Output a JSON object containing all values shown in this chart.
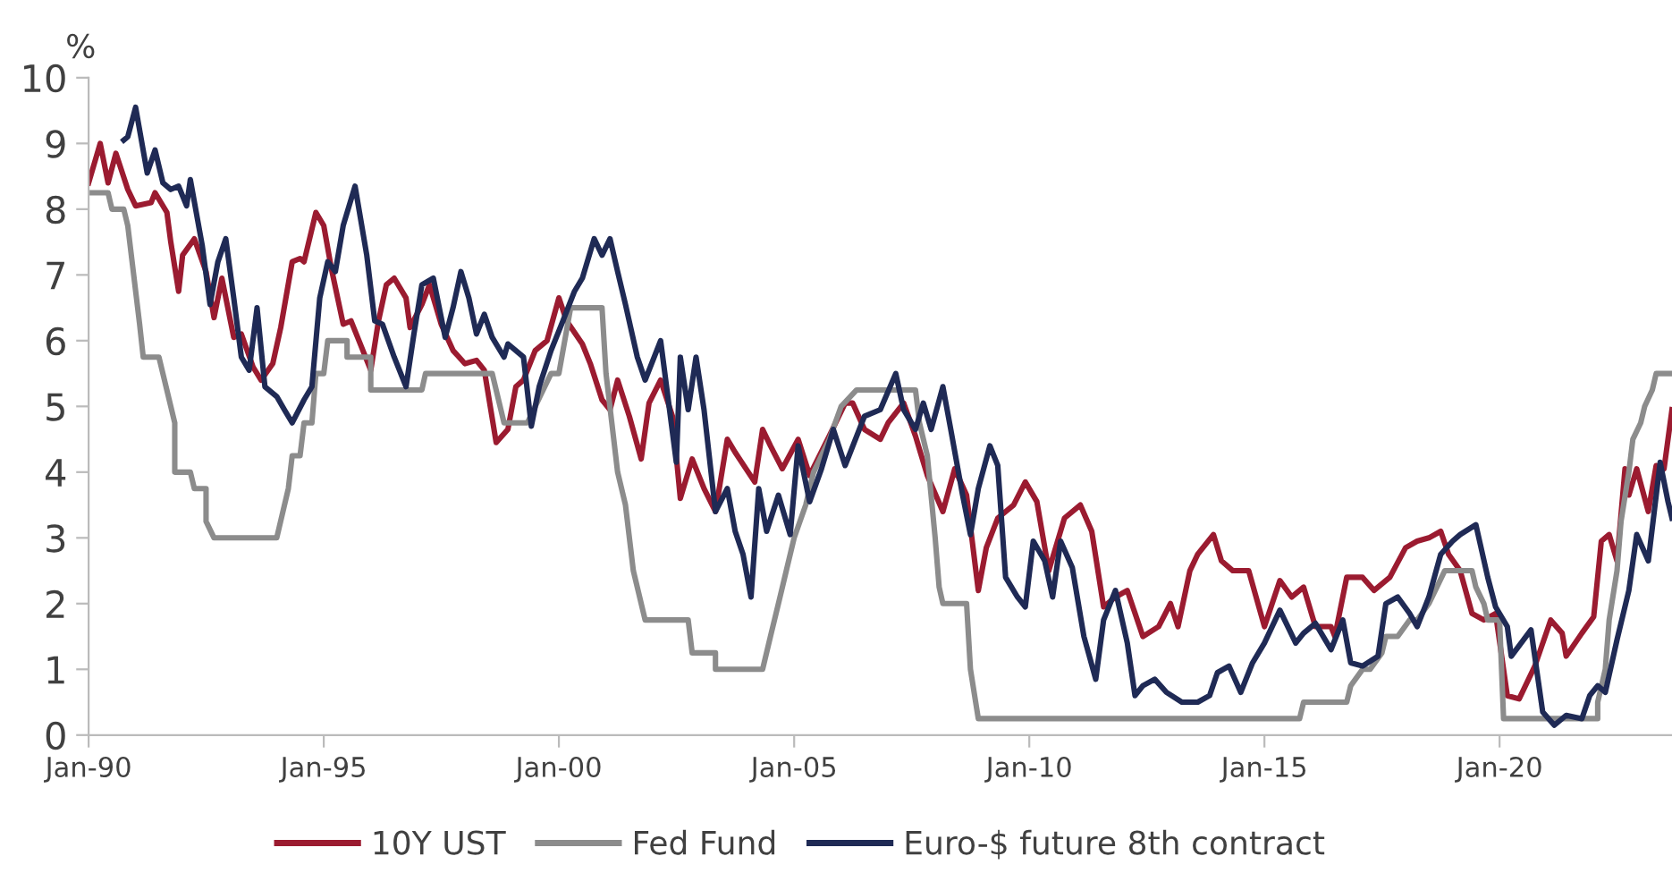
{
  "chart_data": {
    "type": "line",
    "ylabel": "%",
    "xlim": [
      "1990-01",
      "2023-09"
    ],
    "ylim": [
      0,
      10
    ],
    "yticks": [
      0,
      1,
      2,
      3,
      4,
      5,
      6,
      7,
      8,
      9,
      10
    ],
    "xticks": [
      {
        "value": "1990-01",
        "label": "Jan-90"
      },
      {
        "value": "1995-01",
        "label": "Jan-95"
      },
      {
        "value": "2000-01",
        "label": "Jan-00"
      },
      {
        "value": "2005-01",
        "label": "Jan-05"
      },
      {
        "value": "2010-01",
        "label": "Jan-10"
      },
      {
        "value": "2015-01",
        "label": "Jan-15"
      },
      {
        "value": "2020-01",
        "label": "Jan-20"
      }
    ],
    "grid": false,
    "legend": "bottom",
    "marker": "none",
    "line_style": "solid",
    "series": [
      {
        "name": "10Y UST",
        "color": "#9b1b30",
        "x": [
          "1990-01",
          "1990-04",
          "1990-06",
          "1990-08",
          "1990-11",
          "1991-01",
          "1991-05",
          "1991-06",
          "1991-09",
          "1991-10",
          "1991-12",
          "1992-01",
          "1992-04",
          "1992-07",
          "1992-09",
          "1992-11",
          "1993-02",
          "1993-04",
          "1993-07",
          "1993-09",
          "1993-12",
          "1994-02",
          "1994-05",
          "1994-07",
          "1994-08",
          "1994-11",
          "1995-01",
          "1995-03",
          "1995-06",
          "1995-08",
          "1995-11",
          "1996-01",
          "1996-03",
          "1996-05",
          "1996-07",
          "1996-10",
          "1996-11",
          "1997-02",
          "1997-04",
          "1997-07",
          "1997-10",
          "1998-01",
          "1998-04",
          "1998-06",
          "1998-09",
          "1998-12",
          "1999-02",
          "1999-04",
          "1999-07",
          "1999-10",
          "2000-01",
          "2000-03",
          "2000-07",
          "2000-09",
          "2000-12",
          "2001-02",
          "2001-04",
          "2001-07",
          "2001-10",
          "2001-12",
          "2002-03",
          "2002-06",
          "2002-08",
          "2002-11",
          "2003-02",
          "2003-05",
          "2003-08",
          "2003-10",
          "2004-03",
          "2004-05",
          "2004-07",
          "2004-10",
          "2005-02",
          "2005-05",
          "2005-10",
          "2006-02",
          "2006-04",
          "2006-07",
          "2006-11",
          "2007-01",
          "2007-05",
          "2007-08",
          "2007-11",
          "2008-03",
          "2008-06",
          "2008-09",
          "2008-12",
          "2009-02",
          "2009-05",
          "2009-09",
          "2009-12",
          "2010-03",
          "2010-06",
          "2010-10",
          "2011-02",
          "2011-05",
          "2011-08",
          "2011-11",
          "2012-02",
          "2012-06",
          "2012-10",
          "2013-01",
          "2013-03",
          "2013-06",
          "2013-08",
          "2013-12",
          "2014-02",
          "2014-05",
          "2014-09",
          "2015-01",
          "2015-05",
          "2015-08",
          "2015-11",
          "2016-02",
          "2016-06",
          "2016-07",
          "2016-10",
          "2017-02",
          "2017-05",
          "2017-09",
          "2018-01",
          "2018-04",
          "2018-07",
          "2018-10",
          "2018-12",
          "2019-03",
          "2019-06",
          "2019-09",
          "2019-12",
          "2020-03",
          "2020-06",
          "2020-10",
          "2021-02",
          "2021-05",
          "2021-06",
          "2021-10",
          "2022-01",
          "2022-03",
          "2022-05",
          "2022-07",
          "2022-09",
          "2022-10",
          "2022-12",
          "2023-03",
          "2023-05",
          "2023-07",
          "2023-09"
        ],
        "values": [
          8.4,
          9.0,
          8.4,
          8.85,
          8.3,
          8.05,
          8.1,
          8.25,
          7.95,
          7.5,
          6.75,
          7.3,
          7.55,
          7.05,
          6.35,
          6.95,
          6.05,
          6.1,
          5.6,
          5.4,
          5.65,
          6.2,
          7.2,
          7.25,
          7.2,
          7.95,
          7.75,
          7.1,
          6.25,
          6.3,
          5.85,
          5.55,
          6.3,
          6.85,
          6.95,
          6.65,
          6.2,
          6.55,
          6.85,
          6.25,
          5.85,
          5.65,
          5.7,
          5.55,
          4.45,
          4.65,
          5.3,
          5.4,
          5.85,
          6.0,
          6.65,
          6.3,
          5.95,
          5.65,
          5.1,
          4.95,
          5.4,
          4.85,
          4.2,
          5.05,
          5.4,
          4.85,
          3.6,
          4.2,
          3.75,
          3.4,
          4.5,
          4.3,
          3.85,
          4.65,
          4.4,
          4.05,
          4.5,
          3.95,
          4.55,
          5.05,
          5.05,
          4.65,
          4.5,
          4.75,
          5.05,
          4.55,
          3.95,
          3.4,
          4.05,
          3.65,
          2.2,
          2.85,
          3.3,
          3.5,
          3.85,
          3.55,
          2.5,
          3.3,
          3.5,
          3.1,
          1.95,
          2.1,
          2.2,
          1.5,
          1.65,
          2.0,
          1.65,
          2.5,
          2.75,
          3.05,
          2.65,
          2.5,
          2.5,
          1.65,
          2.35,
          2.1,
          2.25,
          1.65,
          1.65,
          1.5,
          2.4,
          2.4,
          2.2,
          2.4,
          2.85,
          2.95,
          3.0,
          3.1,
          2.75,
          2.5,
          1.85,
          1.75,
          1.85,
          0.6,
          0.55,
          1.05,
          1.75,
          1.55,
          1.2,
          1.55,
          1.8,
          2.95,
          3.05,
          2.65,
          4.05,
          3.65,
          4.05,
          3.4,
          4.1,
          4.05,
          4.95
        ]
      },
      {
        "name": "Fed Fund",
        "color": "#8c8c8c",
        "x": [
          "1990-01",
          "1990-06",
          "1990-07",
          "1990-10",
          "1990-11",
          "1991-02",
          "1991-03",
          "1991-07",
          "1991-11",
          "1991-11",
          "1992-03",
          "1992-04",
          "1992-07",
          "1992-07",
          "1992-09",
          "1994-01",
          "1994-04",
          "1994-05",
          "1994-07",
          "1994-08",
          "1994-10",
          "1994-11",
          "1995-01",
          "1995-02",
          "1995-07",
          "1995-07",
          "1996-01",
          "1996-01",
          "1997-02",
          "1997-03",
          "1998-08",
          "1998-11",
          "1999-05",
          "1999-07",
          "1999-11",
          "2000-01",
          "2000-04",
          "2000-12",
          "2001-01",
          "2001-04",
          "2001-06",
          "2001-08",
          "2001-11",
          "2002-10",
          "2002-11",
          "2003-05",
          "2003-05",
          "2004-05",
          "2004-07",
          "2004-09",
          "2004-11",
          "2005-01",
          "2005-04",
          "2005-06",
          "2005-10",
          "2006-01",
          "2006-05",
          "2007-08",
          "2007-09",
          "2007-11",
          "2008-01",
          "2008-02",
          "2008-03",
          "2008-09",
          "2008-10",
          "2008-12",
          "2015-10",
          "2015-11",
          "2016-10",
          "2016-11",
          "2017-02",
          "2017-04",
          "2017-07",
          "2017-08",
          "2017-11",
          "2018-02",
          "2018-04",
          "2018-07",
          "2018-09",
          "2018-11",
          "2019-06",
          "2019-07",
          "2019-09",
          "2019-10",
          "2020-01",
          "2020-02",
          "2022-02",
          "2022-02",
          "2022-04",
          "2022-05",
          "2022-07",
          "2022-08",
          "2022-10",
          "2022-11",
          "2023-01",
          "2023-02",
          "2023-04",
          "2023-05",
          "2023-07",
          "2023-09"
        ],
        "values": [
          8.25,
          8.25,
          8.0,
          8.0,
          7.75,
          6.25,
          5.75,
          5.75,
          4.75,
          4.0,
          4.0,
          3.75,
          3.75,
          3.25,
          3.0,
          3.0,
          3.75,
          4.25,
          4.25,
          4.75,
          4.75,
          5.5,
          5.5,
          6.0,
          6.0,
          5.75,
          5.75,
          5.25,
          5.25,
          5.5,
          5.5,
          4.75,
          4.75,
          5.0,
          5.5,
          5.5,
          6.5,
          6.5,
          5.5,
          4.0,
          3.5,
          2.5,
          1.75,
          1.75,
          1.25,
          1.25,
          1.0,
          1.0,
          1.5,
          2.0,
          2.5,
          3.0,
          3.5,
          4.0,
          4.5,
          5.0,
          5.25,
          5.25,
          4.75,
          4.25,
          3.0,
          2.25,
          2.0,
          2.0,
          1.0,
          0.25,
          0.25,
          0.5,
          0.5,
          0.75,
          1.0,
          1.0,
          1.25,
          1.5,
          1.5,
          1.75,
          1.75,
          2.0,
          2.25,
          2.5,
          2.5,
          2.25,
          2.0,
          1.75,
          1.75,
          0.25,
          0.25,
          0.5,
          1.0,
          1.75,
          2.5,
          3.25,
          4.0,
          4.5,
          4.75,
          5.0,
          5.25,
          5.5,
          5.5,
          5.5
        ]
      },
      {
        "name": "Euro-$ future 8th contract",
        "color": "#1f2a55",
        "x": [
          "1990-10",
          "1990-11",
          "1991-01",
          "1991-04",
          "1991-06",
          "1991-08",
          "1991-10",
          "1991-12",
          "1992-02",
          "1992-03",
          "1992-06",
          "1992-08",
          "1992-10",
          "1992-12",
          "1993-02",
          "1993-04",
          "1993-06",
          "1993-08",
          "1993-10",
          "1994-01",
          "1994-03",
          "1994-05",
          "1994-08",
          "1994-10",
          "1994-12",
          "1995-02",
          "1995-04",
          "1995-06",
          "1995-09",
          "1995-12",
          "1996-02",
          "1996-04",
          "1996-07",
          "1996-10",
          "1996-12",
          "1997-02",
          "1997-05",
          "1997-08",
          "1997-10",
          "1997-12",
          "1998-02",
          "1998-04",
          "1998-06",
          "1998-08",
          "1998-11",
          "1998-12",
          "1999-04",
          "1999-06",
          "1999-08",
          "1999-11",
          "2000-02",
          "2000-05",
          "2000-07",
          "2000-10",
          "2000-12",
          "2001-02",
          "2001-04",
          "2001-06",
          "2001-09",
          "2001-11",
          "2002-03",
          "2002-07",
          "2002-08",
          "2002-10",
          "2002-12",
          "2003-02",
          "2003-05",
          "2003-08",
          "2003-10",
          "2003-12",
          "2004-02",
          "2004-04",
          "2004-06",
          "2004-09",
          "2004-12",
          "2005-02",
          "2005-05",
          "2005-08",
          "2005-11",
          "2006-02",
          "2006-07",
          "2006-11",
          "2007-03",
          "2007-05",
          "2007-08",
          "2007-10",
          "2007-12",
          "2008-03",
          "2008-05",
          "2008-08",
          "2008-10",
          "2008-12",
          "2009-03",
          "2009-05",
          "2009-07",
          "2009-10",
          "2009-12",
          "2010-02",
          "2010-05",
          "2010-07",
          "2010-09",
          "2010-12",
          "2011-03",
          "2011-06",
          "2011-08",
          "2011-11",
          "2012-02",
          "2012-04",
          "2012-06",
          "2012-09",
          "2012-12",
          "2013-04",
          "2013-08",
          "2013-11",
          "2014-01",
          "2014-04",
          "2014-07",
          "2014-10",
          "2015-01",
          "2015-05",
          "2015-09",
          "2015-11",
          "2016-02",
          "2016-06",
          "2016-09",
          "2016-11",
          "2017-02",
          "2017-06",
          "2017-08",
          "2017-11",
          "2018-02",
          "2018-04",
          "2018-07",
          "2018-10",
          "2019-01",
          "2019-03",
          "2019-07",
          "2019-10",
          "2019-12",
          "2020-03",
          "2020-04",
          "2020-09",
          "2020-12",
          "2021-03",
          "2021-06",
          "2021-10",
          "2021-12",
          "2022-02",
          "2022-04",
          "2022-07",
          "2022-10",
          "2022-12",
          "2023-03",
          "2023-06",
          "2023-08",
          "2023-09"
        ],
        "values": [
          9.05,
          9.1,
          9.55,
          8.55,
          8.9,
          8.4,
          8.3,
          8.35,
          8.05,
          8.45,
          7.45,
          6.55,
          7.2,
          7.55,
          6.65,
          5.75,
          5.55,
          6.5,
          5.3,
          5.15,
          4.95,
          4.75,
          5.1,
          5.3,
          6.65,
          7.2,
          7.05,
          7.75,
          8.35,
          7.3,
          6.3,
          6.25,
          5.75,
          5.3,
          6.1,
          6.85,
          6.95,
          6.05,
          6.5,
          7.05,
          6.65,
          6.1,
          6.4,
          6.05,
          5.75,
          5.95,
          5.75,
          4.7,
          5.3,
          5.85,
          6.3,
          6.75,
          6.95,
          7.55,
          7.3,
          7.55,
          7.05,
          6.55,
          5.75,
          5.4,
          6.0,
          4.15,
          5.75,
          4.95,
          5.75,
          4.95,
          3.4,
          3.75,
          3.1,
          2.75,
          2.1,
          3.75,
          3.1,
          3.65,
          3.05,
          4.4,
          3.55,
          4.05,
          4.65,
          4.1,
          4.85,
          4.95,
          5.5,
          4.95,
          4.65,
          5.05,
          4.65,
          5.3,
          4.65,
          3.65,
          3.05,
          3.75,
          4.4,
          4.1,
          2.4,
          2.1,
          1.95,
          2.95,
          2.65,
          2.1,
          2.95,
          2.55,
          1.5,
          0.85,
          1.75,
          2.2,
          1.4,
          0.6,
          0.75,
          0.85,
          0.65,
          0.5,
          0.5,
          0.6,
          0.95,
          1.05,
          0.65,
          1.1,
          1.4,
          1.9,
          1.4,
          1.55,
          1.7,
          1.3,
          1.75,
          1.1,
          1.05,
          1.2,
          2.0,
          2.1,
          1.85,
          1.65,
          2.1,
          2.75,
          2.95,
          3.05,
          3.2,
          2.4,
          1.95,
          1.65,
          1.2,
          1.6,
          0.35,
          0.15,
          0.3,
          0.25,
          0.6,
          0.75,
          0.65,
          1.45,
          2.2,
          3.05,
          2.65,
          4.15,
          3.55,
          3.3
        ]
      }
    ]
  }
}
